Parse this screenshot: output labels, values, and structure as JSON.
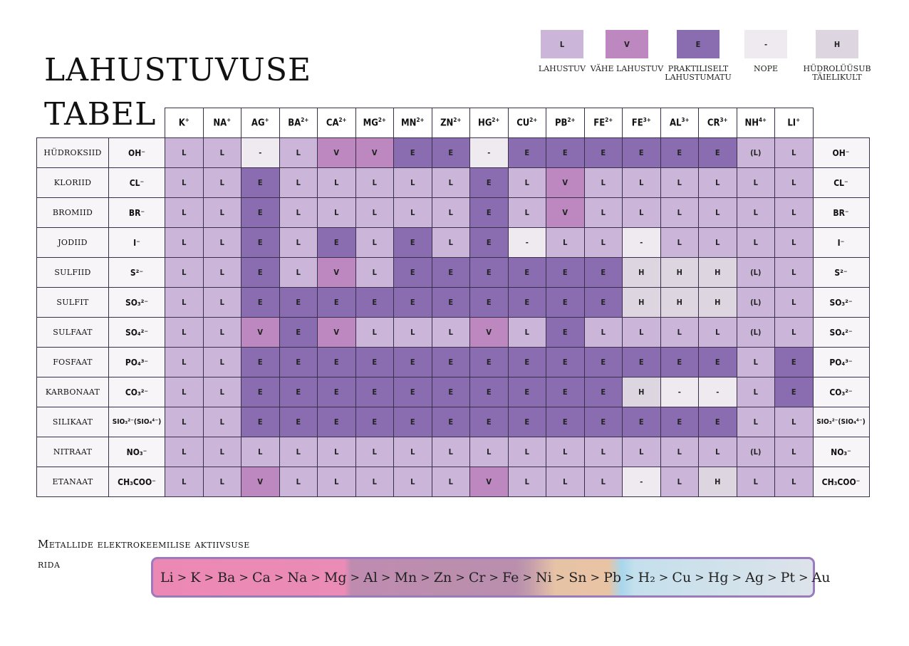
{
  "title": "LAHUSTUVUSE TABEL",
  "legend": [
    {
      "code": "L",
      "label": "LAHUSTUV",
      "color": "#cbb6da"
    },
    {
      "code": "V",
      "label": "VÄHE LAHUSTUV",
      "color": "#bd87bf"
    },
    {
      "code": "E",
      "label": "PRAKTILISELT LAHUSTUMATU",
      "color": "#8a6db0"
    },
    {
      "code": "-",
      "label": "NOPE",
      "color": "#eeeaef"
    },
    {
      "code": "H",
      "label": "HÜDROLÜÜSUB TÄIELIKULT",
      "color": "#ddd6e1"
    }
  ],
  "cations": [
    "K",
    "NA",
    "AG",
    "BA",
    "CA",
    "MG",
    "MN",
    "ZN",
    "HG",
    "CU",
    "PB",
    "FE",
    "FE",
    "AL",
    "CR",
    "NH",
    "LI"
  ],
  "cation_charges": [
    "+",
    "+",
    "+",
    "2+",
    "2+",
    "2+",
    "2+",
    "2+",
    "2+",
    "2+",
    "2+",
    "2+",
    "3+",
    "3+",
    "3+",
    "4+",
    "+"
  ],
  "rows": [
    {
      "name": "HÜDROKSIID",
      "anion": "OH⁻",
      "cells": [
        "L",
        "L",
        "-",
        "L",
        "V",
        "V",
        "E",
        "E",
        "-",
        "E",
        "E",
        "E",
        "E",
        "E",
        "E",
        "(L)",
        "L"
      ]
    },
    {
      "name": "KLORIID",
      "anion": "CL⁻",
      "cells": [
        "L",
        "L",
        "E",
        "L",
        "L",
        "L",
        "L",
        "L",
        "E",
        "L",
        "V",
        "L",
        "L",
        "L",
        "L",
        "L",
        "L"
      ]
    },
    {
      "name": "BROMIID",
      "anion": "BR⁻",
      "cells": [
        "L",
        "L",
        "E",
        "L",
        "L",
        "L",
        "L",
        "L",
        "E",
        "L",
        "V",
        "L",
        "L",
        "L",
        "L",
        "L",
        "L"
      ]
    },
    {
      "name": "JODIID",
      "anion": "I⁻",
      "cells": [
        "L",
        "L",
        "E",
        "L",
        "E",
        "L",
        "E",
        "L",
        "E",
        "-",
        "L",
        "L",
        "-",
        "L",
        "L",
        "L",
        "L"
      ]
    },
    {
      "name": "SULFIID",
      "anion": "S²⁻",
      "cells": [
        "L",
        "L",
        "E",
        "L",
        "V",
        "L",
        "E",
        "E",
        "E",
        "E",
        "E",
        "E",
        "H",
        "H",
        "H",
        "(L)",
        "L"
      ]
    },
    {
      "name": "SULFIT",
      "anion": "SO₃²⁻",
      "cells": [
        "L",
        "L",
        "E",
        "E",
        "E",
        "E",
        "E",
        "E",
        "E",
        "E",
        "E",
        "E",
        "H",
        "H",
        "H",
        "(L)",
        "L"
      ]
    },
    {
      "name": "SULFAAT",
      "anion": "SO₄²⁻",
      "cells": [
        "L",
        "L",
        "V",
        "E",
        "V",
        "L",
        "L",
        "L",
        "V",
        "L",
        "E",
        "L",
        "L",
        "L",
        "L",
        "(L)",
        "L"
      ]
    },
    {
      "name": "FOSFAAT",
      "anion": "PO₄³⁻",
      "cells": [
        "L",
        "L",
        "E",
        "E",
        "E",
        "E",
        "E",
        "E",
        "E",
        "E",
        "E",
        "E",
        "E",
        "E",
        "E",
        "L",
        "E"
      ]
    },
    {
      "name": "KARBONAAT",
      "anion": "CO₃²⁻",
      "cells": [
        "L",
        "L",
        "E",
        "E",
        "E",
        "E",
        "E",
        "E",
        "E",
        "E",
        "E",
        "E",
        "H",
        "-",
        "-",
        "L",
        "E"
      ]
    },
    {
      "name": "SILIKAAT",
      "anion": "SIO₃²⁻(SIO₄⁴⁻)",
      "cells": [
        "L",
        "L",
        "E",
        "E",
        "E",
        "E",
        "E",
        "E",
        "E",
        "E",
        "E",
        "E",
        "E",
        "E",
        "E",
        "L",
        "L"
      ]
    },
    {
      "name": "NITRAAT",
      "anion": "NO₃⁻",
      "cells": [
        "L",
        "L",
        "L",
        "L",
        "L",
        "L",
        "L",
        "L",
        "L",
        "L",
        "L",
        "L",
        "L",
        "L",
        "L",
        "(L)",
        "L"
      ]
    },
    {
      "name": "ETANAAT",
      "anion": "CH₃COO⁻",
      "cells": [
        "L",
        "L",
        "V",
        "L",
        "L",
        "L",
        "L",
        "L",
        "V",
        "L",
        "L",
        "L",
        "-",
        "L",
        "H",
        "L",
        "L"
      ]
    }
  ],
  "series": {
    "title": "Metallide elektrokeemilise aktiivsuse rida",
    "items": [
      "Li",
      "K",
      "Ba",
      "Ca",
      "Na",
      "Mg",
      "Al",
      "Mn",
      "Zn",
      "Cr",
      "Fe",
      "Ni",
      "Sn",
      "Pb",
      "H₂",
      "Cu",
      "Hg",
      "Ag",
      "Pt",
      "Au"
    ],
    "separator": ">"
  }
}
